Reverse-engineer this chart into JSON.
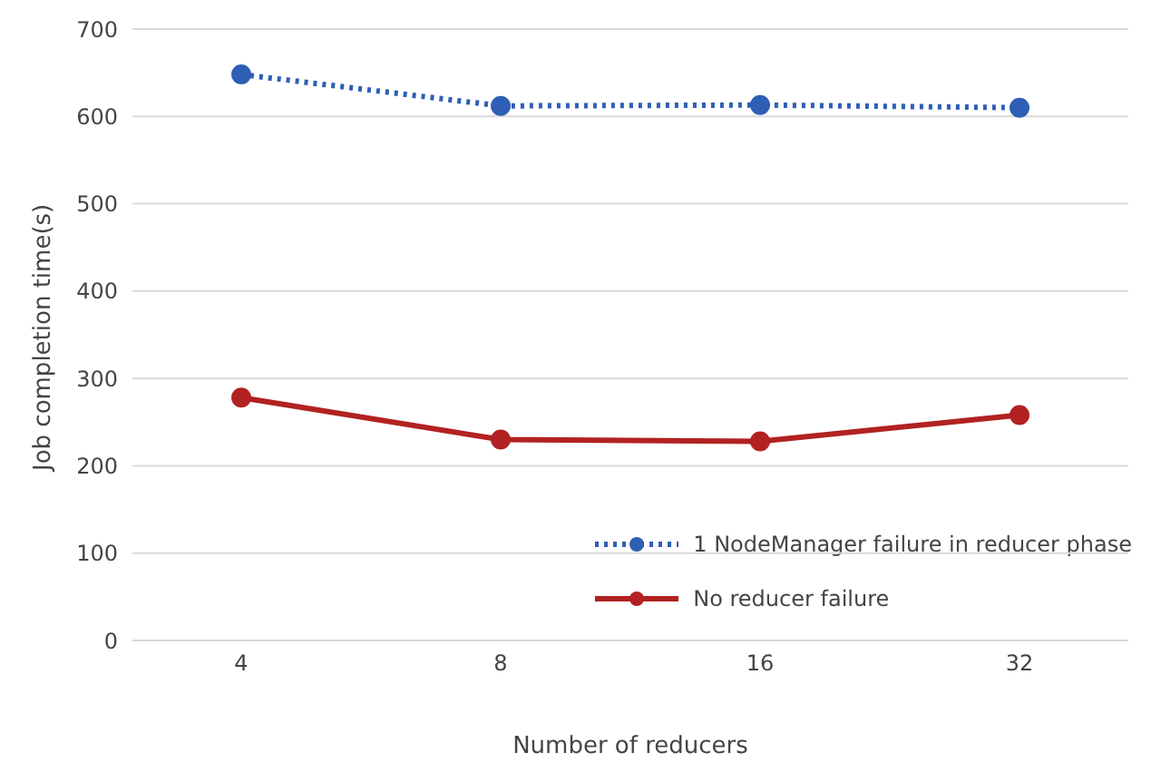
{
  "chart_data": {
    "type": "line",
    "xlabel": "Number  of reducers",
    "ylabel": "Job completion time(s)",
    "categories": [
      "4",
      "8",
      "16",
      "32"
    ],
    "series": [
      {
        "name": "1 NodeManager failure in reducer phase",
        "color": "#2e5fb5",
        "values": [
          648,
          612,
          613,
          610
        ],
        "line_style": "dotted"
      },
      {
        "name": "No reducer failure",
        "color": "#b22222",
        "values": [
          278,
          230,
          228,
          258
        ],
        "line_style": "solid"
      }
    ],
    "ylim": [
      0,
      700
    ],
    "yticks": [
      0,
      100,
      200,
      300,
      400,
      500,
      600,
      700
    ],
    "grid": "y",
    "legend": "bottom right",
    "marker": "circle"
  }
}
